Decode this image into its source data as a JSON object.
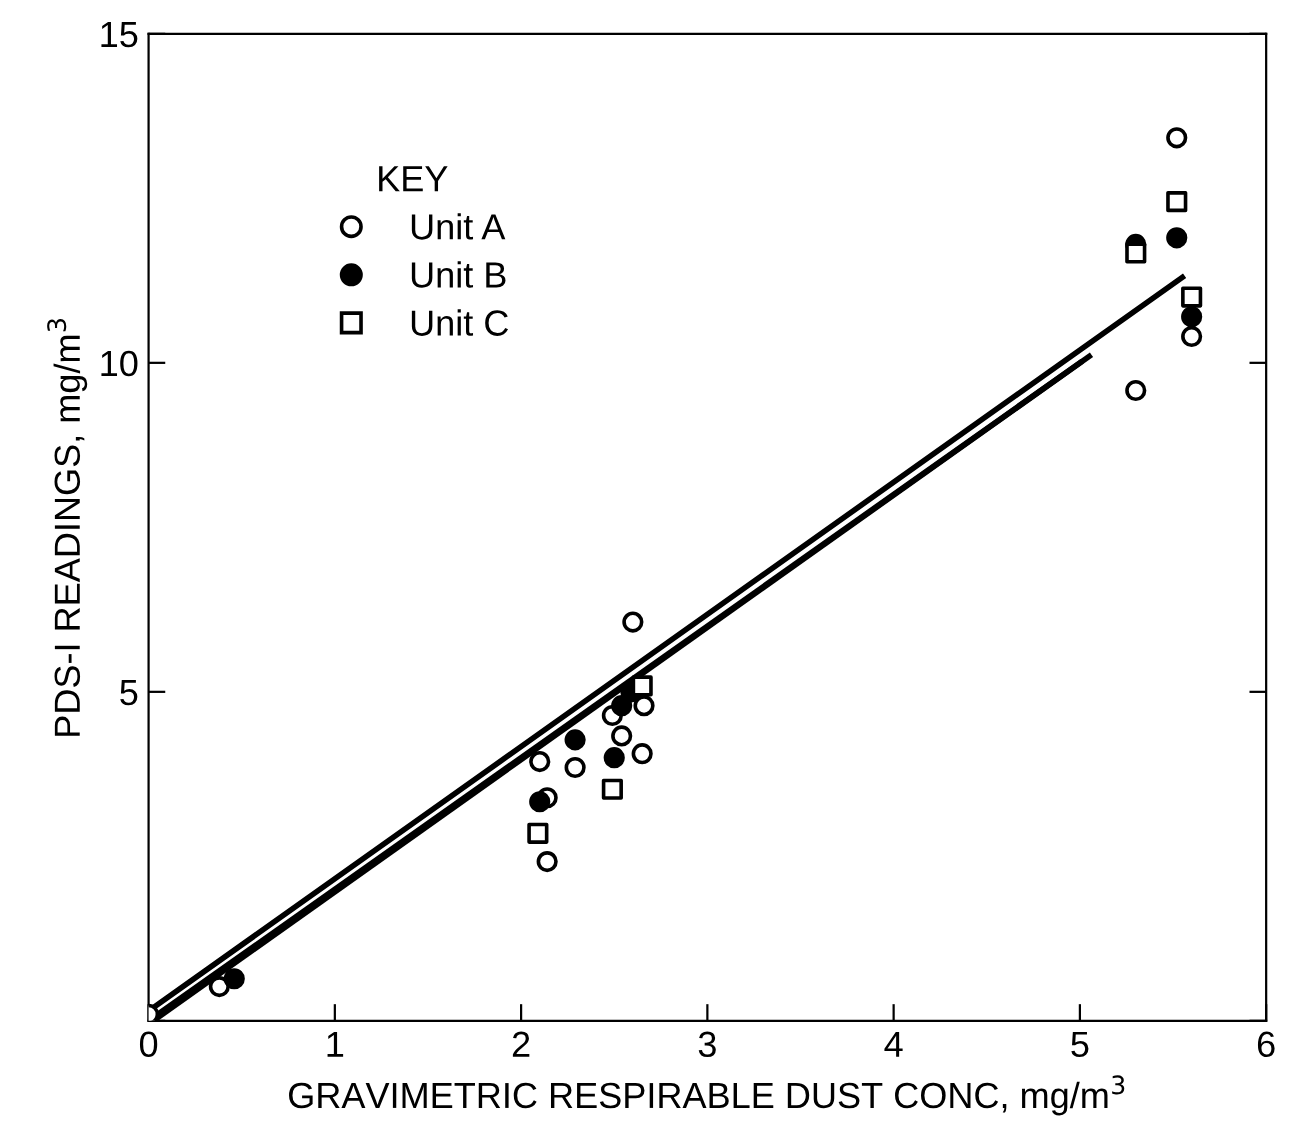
{
  "chart_data": {
    "type": "scatter",
    "xlabel": "GRAVIMETRIC RESPIRABLE DUST CONC, mg/m$^{3}$",
    "ylabel": "PDS-I READINGS, mg/m$^{3}$",
    "legend_title": "KEY",
    "legend": "top left",
    "grid": false,
    "xlim": [
      0,
      6
    ],
    "ylim": [
      0,
      15
    ],
    "xticks": [
      {
        "value": 0,
        "label": "0"
      },
      1,
      2,
      3,
      4,
      5,
      6
    ],
    "yticks": [
      {
        "value": 0,
        "label": null
      },
      5,
      10,
      15
    ],
    "series": [
      {
        "name": "Unit A",
        "color": "#ffffff",
        "marker": "circle",
        "x": [
          0,
          0.38,
          2.1,
          2.29,
          2.14,
          2.14,
          2.49,
          2.54,
          2.65,
          2.66,
          2.6,
          5.52,
          5.6,
          5.3
        ],
        "values": [
          0.1,
          0.52,
          3.94,
          3.85,
          3.39,
          2.42,
          4.64,
          4.33,
          4.06,
          4.79,
          6.06,
          13.42,
          10.4,
          9.58
        ]
      },
      {
        "name": "Unit B",
        "color": "#000000",
        "marker": "circle",
        "x": [
          0.46,
          2.1,
          2.29,
          2.5,
          2.54,
          2.59,
          5.52,
          5.3,
          5.6
        ],
        "values": [
          0.64,
          3.33,
          4.27,
          4.0,
          4.79,
          5.0,
          11.9,
          11.8,
          10.7
        ]
      },
      {
        "name": "Unit C",
        "color": "#ffffff",
        "marker": "square",
        "x": [
          2.09,
          2.49,
          2.65,
          5.52,
          5.3,
          5.6
        ],
        "values": [
          2.85,
          3.52,
          5.09,
          12.45,
          11.67,
          11.0
        ]
      },
      {
        "type": "line",
        "color": "#000000",
        "line_style": "solid",
        "x": [
          0,
          5.55
        ],
        "values": [
          0.15,
          11.3
        ]
      },
      {
        "type": "line",
        "color": "#000000",
        "line_style": "solid",
        "x": [
          0.05,
          5.05
        ],
        "values": [
          0.05,
          10.1
        ]
      },
      {
        "type": "line",
        "color": "#000000",
        "line_style": "solid",
        "x": [
          0,
          5.0
        ],
        "values": [
          0.0,
          10.0
        ]
      }
    ]
  }
}
